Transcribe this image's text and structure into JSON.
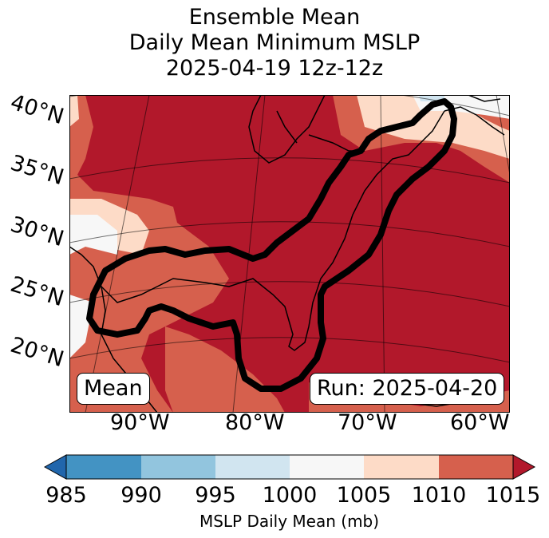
{
  "title": {
    "line1": "Ensemble Mean",
    "line2": "Daily Mean Minimum MSLP",
    "line3": "2025-04-19 12z-12z"
  },
  "map": {
    "latitude_labels": [
      "40°N",
      "35°N",
      "30°N",
      "25°N",
      "20°N"
    ],
    "longitude_labels": [
      "90°W",
      "80°W",
      "70°W",
      "60°W"
    ],
    "field_label": "Mean",
    "run_label": "Run: 2025-04-20",
    "contour": "ensemble probability outline (black) over U.S. East Coast, Gulf of Mexico and Florida"
  },
  "colorbar": {
    "label": "MSLP Daily Mean (mb)",
    "ticks": [
      "985",
      "990",
      "995",
      "1000",
      "1005",
      "1010",
      "1015"
    ],
    "colors": [
      "#2166ac",
      "#4393c3",
      "#92c5de",
      "#d1e5f0",
      "#f7f7f7",
      "#fddbc7",
      "#d6604d",
      "#b2182b"
    ],
    "extend": "both"
  }
}
